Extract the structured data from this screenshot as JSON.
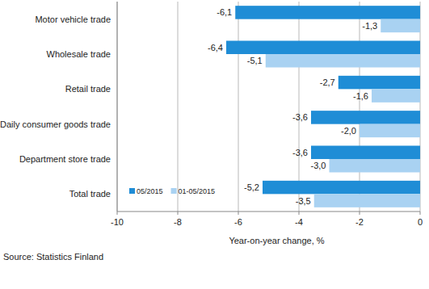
{
  "chart_data": {
    "type": "bar",
    "orientation": "horizontal",
    "categories": [
      "Motor vehicle trade",
      "Wholesale trade",
      "Retail trade",
      "Daily consumer goods trade",
      "Department store trade",
      "Total trade"
    ],
    "series": [
      {
        "name": "05/2015",
        "color": "#1f8dd6",
        "values": [
          -6.1,
          -6.4,
          -2.7,
          -3.6,
          -3.6,
          -5.2
        ],
        "value_labels": [
          "-6,1",
          "-6,4",
          "-2,7",
          "-3,6",
          "-3,6",
          "-5,2"
        ]
      },
      {
        "name": "01-05/2015",
        "color": "#a9d2f2",
        "values": [
          -1.3,
          -5.1,
          -1.6,
          -2.0,
          -3.0,
          -3.5
        ],
        "value_labels": [
          "-1,3",
          "-5,1",
          "-1,6",
          "-2,0",
          "-3,0",
          "-3,5"
        ]
      }
    ],
    "x_label": "Year-on-year change, %",
    "xlim": [
      -10,
      0
    ],
    "xticks": [
      -10,
      -8,
      -6,
      -4,
      -2,
      0
    ],
    "grid": true,
    "data_labels": true,
    "legend": "lower left",
    "source": "Source: Statistics Finland"
  }
}
